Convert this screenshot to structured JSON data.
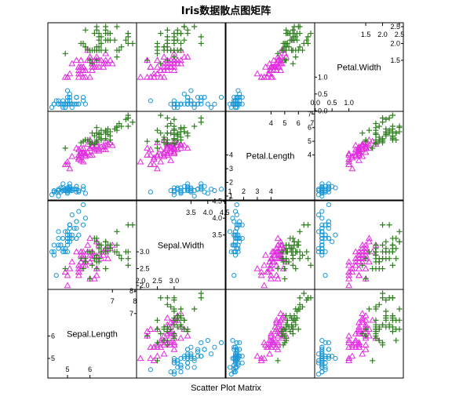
{
  "chart_data": {
    "type": "scatter",
    "title": "Iris数据散点图矩阵",
    "xlabel": "Scatter Plot Matrix",
    "variables": [
      "Sepal.Length",
      "Sepal.Width",
      "Petal.Length",
      "Petal.Width"
    ],
    "ranges": {
      "Sepal.Length": [
        4.3,
        7.9
      ],
      "Sepal.Width": [
        2.0,
        4.4
      ],
      "Petal.Length": [
        1.0,
        6.9
      ],
      "Petal.Width": [
        0.1,
        2.5
      ]
    },
    "diagonal_ticks": {
      "Sepal.Length": {
        "low": [
          "5",
          "6"
        ],
        "high": [
          "7",
          "8"
        ]
      },
      "Sepal.Width": {
        "low": [
          "2.0",
          "2.5",
          "3.0"
        ],
        "high": [
          "3.5",
          "4.0",
          "4.5"
        ]
      },
      "Petal.Length": {
        "low": [
          "1",
          "2",
          "3",
          "4"
        ],
        "high": [
          "4",
          "5",
          "6",
          "7"
        ]
      },
      "Petal.Width": {
        "low": [
          "0.0",
          "0.5",
          "1.0"
        ],
        "high": [
          "1.5",
          "2.0",
          "2.5"
        ]
      }
    },
    "series": [
      {
        "marker": "circle",
        "color": "#1b98d8",
        "points": [
          [
            5.1,
            3.5,
            1.4,
            0.2
          ],
          [
            4.9,
            3.0,
            1.4,
            0.2
          ],
          [
            4.7,
            3.2,
            1.3,
            0.2
          ],
          [
            4.6,
            3.1,
            1.5,
            0.2
          ],
          [
            5.0,
            3.6,
            1.4,
            0.2
          ],
          [
            5.4,
            3.9,
            1.7,
            0.4
          ],
          [
            4.6,
            3.4,
            1.4,
            0.3
          ],
          [
            5.0,
            3.4,
            1.5,
            0.2
          ],
          [
            4.4,
            2.9,
            1.4,
            0.2
          ],
          [
            4.9,
            3.1,
            1.5,
            0.1
          ],
          [
            5.4,
            3.7,
            1.5,
            0.2
          ],
          [
            4.8,
            3.4,
            1.6,
            0.2
          ],
          [
            4.8,
            3.0,
            1.4,
            0.1
          ],
          [
            4.3,
            3.0,
            1.1,
            0.1
          ],
          [
            5.8,
            4.0,
            1.2,
            0.2
          ],
          [
            5.7,
            4.4,
            1.5,
            0.4
          ],
          [
            5.4,
            3.9,
            1.3,
            0.4
          ],
          [
            5.1,
            3.5,
            1.4,
            0.3
          ],
          [
            5.7,
            3.8,
            1.7,
            0.3
          ],
          [
            5.1,
            3.8,
            1.5,
            0.3
          ],
          [
            5.4,
            3.4,
            1.7,
            0.2
          ],
          [
            5.1,
            3.7,
            1.5,
            0.4
          ],
          [
            4.6,
            3.6,
            1.0,
            0.2
          ],
          [
            5.1,
            3.3,
            1.7,
            0.5
          ],
          [
            4.8,
            3.4,
            1.9,
            0.2
          ],
          [
            5.0,
            3.0,
            1.6,
            0.2
          ],
          [
            5.0,
            3.4,
            1.6,
            0.4
          ],
          [
            5.2,
            3.5,
            1.5,
            0.2
          ],
          [
            5.2,
            3.4,
            1.4,
            0.2
          ],
          [
            4.7,
            3.2,
            1.6,
            0.2
          ],
          [
            4.8,
            3.1,
            1.6,
            0.2
          ],
          [
            5.4,
            3.4,
            1.5,
            0.4
          ],
          [
            5.2,
            4.1,
            1.5,
            0.1
          ],
          [
            5.5,
            4.2,
            1.4,
            0.2
          ],
          [
            4.9,
            3.1,
            1.5,
            0.2
          ],
          [
            5.0,
            3.2,
            1.2,
            0.2
          ],
          [
            5.5,
            3.5,
            1.3,
            0.2
          ],
          [
            4.9,
            3.6,
            1.4,
            0.1
          ],
          [
            4.4,
            3.0,
            1.3,
            0.2
          ],
          [
            5.1,
            3.4,
            1.5,
            0.2
          ],
          [
            5.0,
            3.5,
            1.3,
            0.3
          ],
          [
            4.5,
            2.3,
            1.3,
            0.3
          ],
          [
            4.4,
            3.2,
            1.3,
            0.2
          ],
          [
            5.0,
            3.5,
            1.6,
            0.6
          ],
          [
            5.1,
            3.8,
            1.9,
            0.4
          ],
          [
            4.8,
            3.0,
            1.4,
            0.3
          ],
          [
            5.1,
            3.8,
            1.6,
            0.2
          ],
          [
            4.6,
            3.2,
            1.4,
            0.2
          ],
          [
            5.3,
            3.7,
            1.5,
            0.2
          ],
          [
            5.0,
            3.3,
            1.4,
            0.2
          ]
        ]
      },
      {
        "marker": "triangle",
        "color": "#e22de0",
        "points": [
          [
            7.0,
            3.2,
            4.7,
            1.4
          ],
          [
            6.4,
            3.2,
            4.5,
            1.5
          ],
          [
            6.9,
            3.1,
            4.9,
            1.5
          ],
          [
            5.5,
            2.3,
            4.0,
            1.3
          ],
          [
            6.5,
            2.8,
            4.6,
            1.5
          ],
          [
            5.7,
            2.8,
            4.5,
            1.3
          ],
          [
            6.3,
            3.3,
            4.7,
            1.6
          ],
          [
            4.9,
            2.4,
            3.3,
            1.0
          ],
          [
            6.6,
            2.9,
            4.6,
            1.3
          ],
          [
            5.2,
            2.7,
            3.9,
            1.4
          ],
          [
            5.0,
            2.0,
            3.5,
            1.0
          ],
          [
            5.9,
            3.0,
            4.2,
            1.5
          ],
          [
            6.0,
            2.2,
            4.0,
            1.0
          ],
          [
            6.1,
            2.9,
            4.7,
            1.4
          ],
          [
            5.6,
            2.9,
            3.6,
            1.3
          ],
          [
            6.7,
            3.1,
            4.4,
            1.4
          ],
          [
            5.6,
            3.0,
            4.5,
            1.5
          ],
          [
            5.8,
            2.7,
            4.1,
            1.0
          ],
          [
            6.2,
            2.2,
            4.5,
            1.5
          ],
          [
            5.6,
            2.5,
            3.9,
            1.1
          ],
          [
            5.9,
            3.2,
            4.8,
            1.8
          ],
          [
            6.1,
            2.8,
            4.0,
            1.3
          ],
          [
            6.3,
            2.5,
            4.9,
            1.5
          ],
          [
            6.1,
            2.8,
            4.7,
            1.2
          ],
          [
            6.4,
            2.9,
            4.3,
            1.3
          ],
          [
            6.6,
            3.0,
            4.4,
            1.4
          ],
          [
            6.8,
            2.8,
            4.8,
            1.4
          ],
          [
            6.7,
            3.0,
            5.0,
            1.7
          ],
          [
            6.0,
            2.9,
            4.5,
            1.5
          ],
          [
            5.7,
            2.6,
            3.5,
            1.0
          ],
          [
            5.5,
            2.4,
            3.8,
            1.1
          ],
          [
            5.5,
            2.4,
            3.7,
            1.0
          ],
          [
            5.8,
            2.7,
            3.9,
            1.2
          ],
          [
            6.0,
            2.7,
            5.1,
            1.6
          ],
          [
            5.4,
            3.0,
            4.5,
            1.5
          ],
          [
            6.0,
            3.4,
            4.5,
            1.6
          ],
          [
            6.7,
            3.1,
            4.7,
            1.5
          ],
          [
            6.3,
            2.3,
            4.4,
            1.3
          ],
          [
            5.6,
            3.0,
            4.1,
            1.3
          ],
          [
            5.5,
            2.5,
            4.0,
            1.3
          ],
          [
            5.5,
            2.6,
            4.4,
            1.2
          ],
          [
            6.1,
            3.0,
            4.6,
            1.4
          ],
          [
            5.8,
            2.6,
            4.0,
            1.2
          ],
          [
            5.0,
            2.3,
            3.3,
            1.0
          ],
          [
            5.6,
            2.7,
            4.2,
            1.3
          ],
          [
            5.7,
            3.0,
            4.2,
            1.2
          ],
          [
            5.7,
            2.9,
            4.2,
            1.3
          ],
          [
            6.2,
            2.9,
            4.3,
            1.3
          ],
          [
            5.1,
            2.5,
            3.0,
            1.1
          ],
          [
            5.7,
            2.8,
            4.1,
            1.3
          ]
        ]
      },
      {
        "marker": "plus",
        "color": "#2e7d1e",
        "points": [
          [
            6.3,
            3.3,
            6.0,
            2.5
          ],
          [
            5.8,
            2.7,
            5.1,
            1.9
          ],
          [
            7.1,
            3.0,
            5.9,
            2.1
          ],
          [
            6.3,
            2.9,
            5.6,
            1.8
          ],
          [
            6.5,
            3.0,
            5.8,
            2.2
          ],
          [
            7.6,
            3.0,
            6.6,
            2.1
          ],
          [
            4.9,
            2.5,
            4.5,
            1.7
          ],
          [
            7.3,
            2.9,
            6.3,
            1.8
          ],
          [
            6.7,
            2.5,
            5.8,
            1.8
          ],
          [
            7.2,
            3.6,
            6.1,
            2.5
          ],
          [
            6.5,
            3.2,
            5.1,
            2.0
          ],
          [
            6.4,
            2.7,
            5.3,
            1.9
          ],
          [
            6.8,
            3.0,
            5.5,
            2.1
          ],
          [
            5.7,
            2.5,
            5.0,
            2.0
          ],
          [
            5.8,
            2.8,
            5.1,
            2.4
          ],
          [
            6.4,
            3.2,
            5.3,
            2.3
          ],
          [
            6.5,
            3.0,
            5.5,
            1.8
          ],
          [
            7.7,
            3.8,
            6.7,
            2.2
          ],
          [
            7.7,
            2.6,
            6.9,
            2.3
          ],
          [
            6.0,
            2.2,
            5.0,
            1.5
          ],
          [
            6.9,
            3.2,
            5.7,
            2.3
          ],
          [
            5.6,
            2.8,
            4.9,
            2.0
          ],
          [
            7.7,
            2.8,
            6.7,
            2.0
          ],
          [
            6.3,
            2.7,
            4.9,
            1.8
          ],
          [
            6.7,
            3.3,
            5.7,
            2.1
          ],
          [
            7.2,
            3.2,
            6.0,
            1.8
          ],
          [
            6.2,
            2.8,
            4.8,
            1.8
          ],
          [
            6.1,
            3.0,
            4.9,
            1.8
          ],
          [
            6.4,
            2.8,
            5.6,
            2.1
          ],
          [
            7.2,
            3.0,
            5.8,
            1.6
          ],
          [
            7.4,
            2.8,
            6.1,
            1.9
          ],
          [
            7.9,
            3.8,
            6.4,
            2.0
          ],
          [
            6.4,
            2.8,
            5.6,
            2.2
          ],
          [
            6.3,
            2.8,
            5.1,
            1.5
          ],
          [
            6.1,
            2.6,
            5.6,
            1.4
          ],
          [
            7.7,
            3.0,
            6.1,
            2.3
          ],
          [
            6.3,
            3.4,
            5.6,
            2.4
          ],
          [
            6.4,
            3.1,
            5.5,
            1.8
          ],
          [
            6.0,
            3.0,
            4.8,
            1.8
          ],
          [
            6.9,
            3.1,
            5.4,
            2.1
          ],
          [
            6.7,
            3.1,
            5.6,
            2.4
          ],
          [
            6.9,
            3.1,
            5.1,
            2.3
          ],
          [
            5.8,
            2.7,
            5.1,
            1.9
          ],
          [
            6.8,
            3.2,
            5.9,
            2.3
          ],
          [
            6.7,
            3.3,
            5.7,
            2.5
          ],
          [
            6.7,
            3.0,
            5.2,
            2.3
          ],
          [
            6.3,
            2.5,
            5.0,
            1.9
          ],
          [
            6.5,
            3.0,
            5.2,
            2.0
          ],
          [
            6.2,
            3.4,
            5.4,
            2.3
          ],
          [
            5.9,
            3.0,
            5.1,
            1.8
          ]
        ]
      }
    ]
  }
}
